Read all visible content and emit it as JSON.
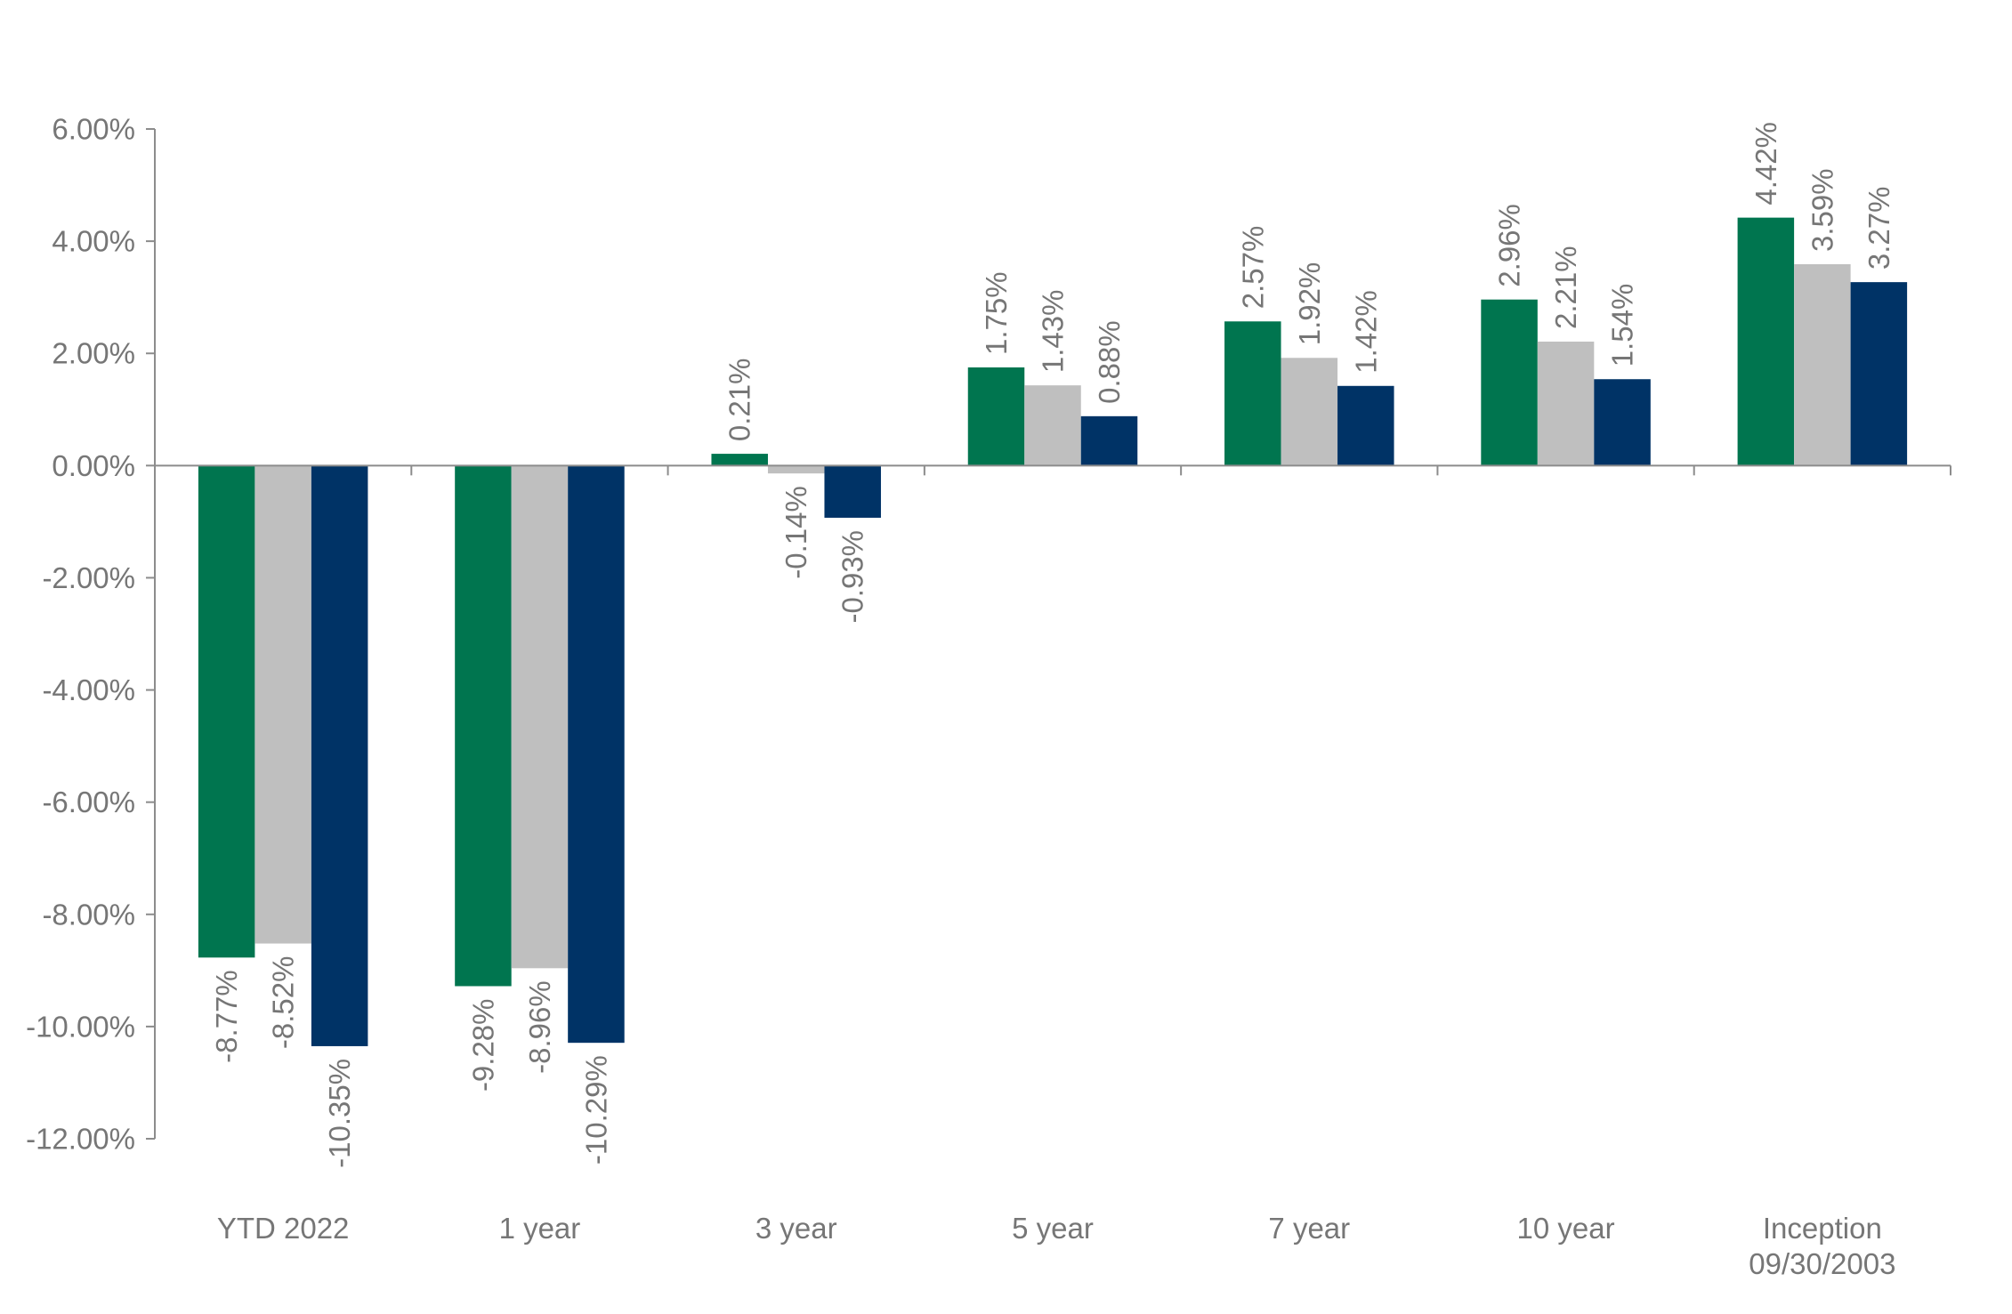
{
  "chart_data": {
    "type": "bar",
    "title": "",
    "xlabel": "",
    "ylabel": "",
    "categories": [
      [
        "YTD 2022"
      ],
      [
        "1 year"
      ],
      [
        "3 year"
      ],
      [
        "5 year"
      ],
      [
        "7 year"
      ],
      [
        "10 year"
      ],
      [
        "Inception",
        "09/30/2003"
      ]
    ],
    "series": [
      {
        "color": "#00754f",
        "values": [
          -8.77,
          -9.28,
          0.21,
          1.75,
          2.57,
          2.96,
          4.42
        ],
        "labels": [
          "-8.77%",
          "-9.28%",
          "0.21%",
          "1.75%",
          "2.57%",
          "2.96%",
          "4.42%"
        ]
      },
      {
        "color": "#bfbfbf",
        "values": [
          -8.52,
          -8.96,
          -0.14,
          1.43,
          1.92,
          2.21,
          3.59
        ],
        "labels": [
          "-8.52%",
          "-8.96%",
          "-0.14%",
          "1.43%",
          "1.92%",
          "2.21%",
          "3.59%"
        ]
      },
      {
        "color": "#003366",
        "values": [
          -10.35,
          -10.29,
          -0.93,
          0.88,
          1.42,
          1.54,
          3.27
        ],
        "labels": [
          "-10.35%",
          "-10.29%",
          "-0.93%",
          "0.88%",
          "1.42%",
          "1.54%",
          "3.27%"
        ]
      }
    ],
    "ylim": [
      -12,
      6
    ],
    "yticks": [
      6,
      4,
      2,
      0,
      -2,
      -4,
      -6,
      -8,
      -10,
      -12
    ],
    "ytick_labels": [
      "6.00%",
      "4.00%",
      "2.00%",
      "0.00%",
      "-2.00%",
      "-4.00%",
      "-6.00%",
      "-8.00%",
      "-10.00%",
      "-12.00%"
    ],
    "grid": false,
    "legend": "none",
    "axis_color": "#8c8c8c"
  }
}
